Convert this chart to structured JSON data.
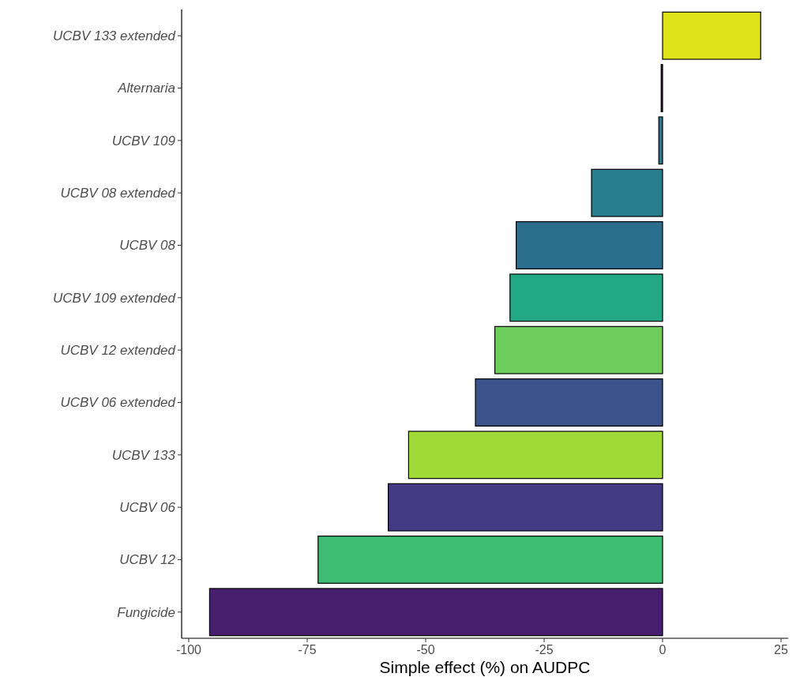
{
  "chart_data": {
    "type": "bar",
    "orientation": "horizontal",
    "xlabel": "Simple effect (%) on AUDPC",
    "categories": [
      "UCBV 133 extended",
      "Alternaria",
      "UCBV 109",
      "UCBV 08 extended",
      "UCBV 08",
      "UCBV 109 extended",
      "UCBV 12 extended",
      "UCBV 06 extended",
      "UCBV 133",
      "UCBV 06",
      "UCBV 12",
      "Fungicide"
    ],
    "values": [
      20.7,
      -0.3,
      -0.8,
      -15,
      -30.9,
      -32.2,
      -35.4,
      -39.5,
      -53.6,
      -57.9,
      -72.7,
      -95.6
    ],
    "colors": [
      "#dde318",
      "#440154",
      "#2a788e",
      "#287d8e",
      "#2c6e8e",
      "#22a884",
      "#6ccd5a",
      "#3b528b",
      "#a0da39",
      "#443983",
      "#3fbc73",
      "#481f70"
    ],
    "xlim": [
      -101.5,
      26.5
    ],
    "xticks": [
      -100,
      -75,
      -50,
      -25,
      0,
      25
    ],
    "grid": false
  }
}
